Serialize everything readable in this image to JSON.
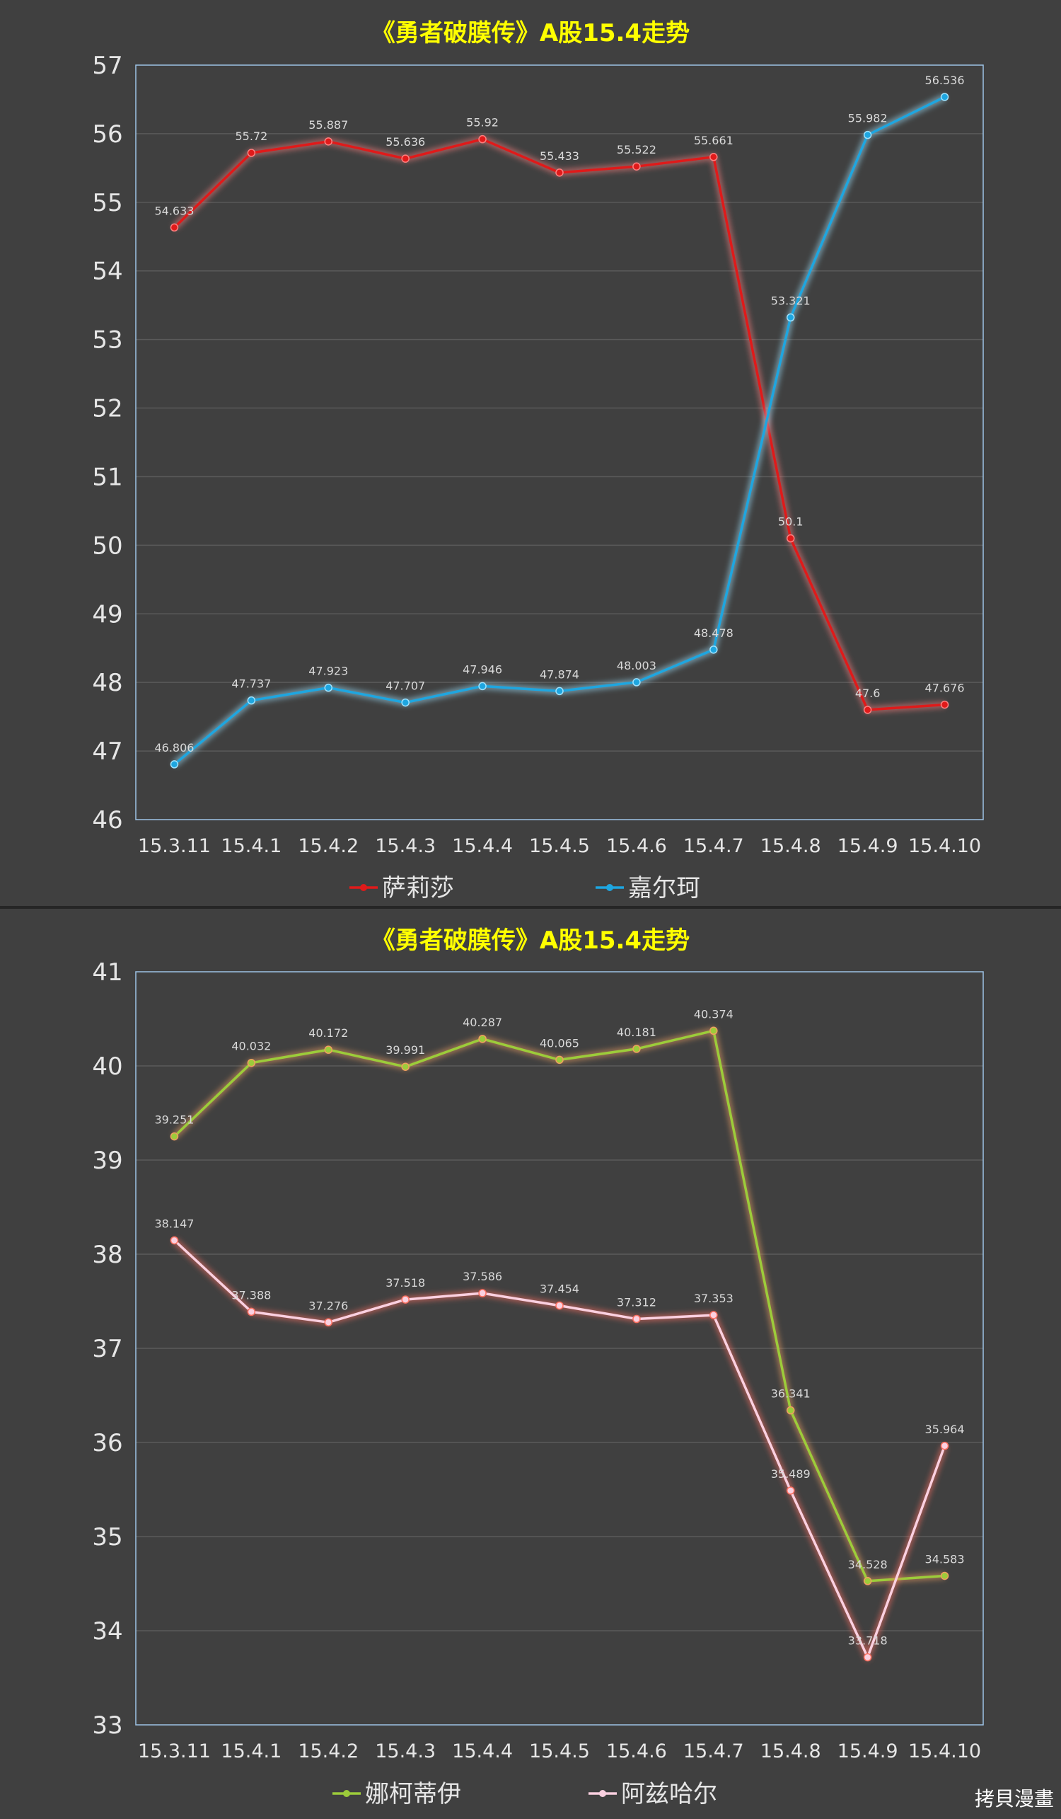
{
  "watermark": "拷貝漫畫",
  "chart_data": [
    {
      "type": "line",
      "title": "《勇者破膜传》A股15.4走势",
      "categories": [
        "15.3.11",
        "15.4.1",
        "15.4.2",
        "15.4.3",
        "15.4.4",
        "15.4.5",
        "15.4.6",
        "15.4.7",
        "15.4.8",
        "15.4.9",
        "15.4.10"
      ],
      "ylim": [
        46,
        57
      ],
      "yticks": [
        46,
        47,
        48,
        49,
        50,
        51,
        52,
        53,
        54,
        55,
        56,
        57
      ],
      "grid": true,
      "legend": "bottom",
      "series": [
        {
          "name": "萨莉莎",
          "color": "#e01a1a",
          "glow": "#ff8080",
          "values": [
            54.633,
            55.72,
            55.887,
            55.636,
            55.92,
            55.433,
            55.522,
            55.661,
            50.1,
            47.6,
            47.676
          ],
          "labels": [
            "54.633",
            "55.72",
            "55.887",
            "55.636",
            "55.92",
            "55.433",
            "55.522",
            "55.661",
            "50.1",
            "47.6",
            "47.676"
          ]
        },
        {
          "name": "嘉尔珂",
          "color": "#1ea6e0",
          "glow": "#9fe3ff",
          "values": [
            46.806,
            47.737,
            47.923,
            47.707,
            47.946,
            47.874,
            48.003,
            48.478,
            53.321,
            55.982,
            56.536
          ],
          "labels": [
            "46.806",
            "47.737",
            "47.923",
            "47.707",
            "47.946",
            "47.874",
            "48.003",
            "48.478",
            "53.321",
            "55.982",
            "56.536"
          ]
        }
      ]
    },
    {
      "type": "line",
      "title": "《勇者破膜传》A股15.4走势",
      "categories": [
        "15.3.11",
        "15.4.1",
        "15.4.2",
        "15.4.3",
        "15.4.4",
        "15.4.5",
        "15.4.6",
        "15.4.7",
        "15.4.8",
        "15.4.9",
        "15.4.10"
      ],
      "ylim": [
        33,
        41
      ],
      "yticks": [
        33,
        34,
        35,
        36,
        37,
        38,
        39,
        40,
        41
      ],
      "grid": true,
      "legend": "bottom",
      "series": [
        {
          "name": "娜柯蒂伊",
          "color": "#9ccc3a",
          "glow": "#f0a060",
          "values": [
            39.251,
            40.032,
            40.172,
            39.991,
            40.287,
            40.065,
            40.181,
            40.374,
            36.341,
            34.528,
            34.583
          ],
          "labels": [
            "39.251",
            "40.032",
            "40.172",
            "39.991",
            "40.287",
            "40.065",
            "40.181",
            "40.374",
            "36.341",
            "34.528",
            "34.583"
          ]
        },
        {
          "name": "阿兹哈尔",
          "color": "#fad0e0",
          "glow": "#ff7060",
          "values": [
            38.147,
            37.388,
            37.276,
            37.518,
            37.586,
            37.454,
            37.312,
            37.353,
            35.489,
            33.718,
            35.964
          ],
          "labels": [
            "38.147",
            "37.388",
            "37.276",
            "37.518",
            "37.586",
            "37.454",
            "37.312",
            "37.353",
            "35.489",
            "33.718",
            "35.964"
          ]
        }
      ]
    }
  ]
}
